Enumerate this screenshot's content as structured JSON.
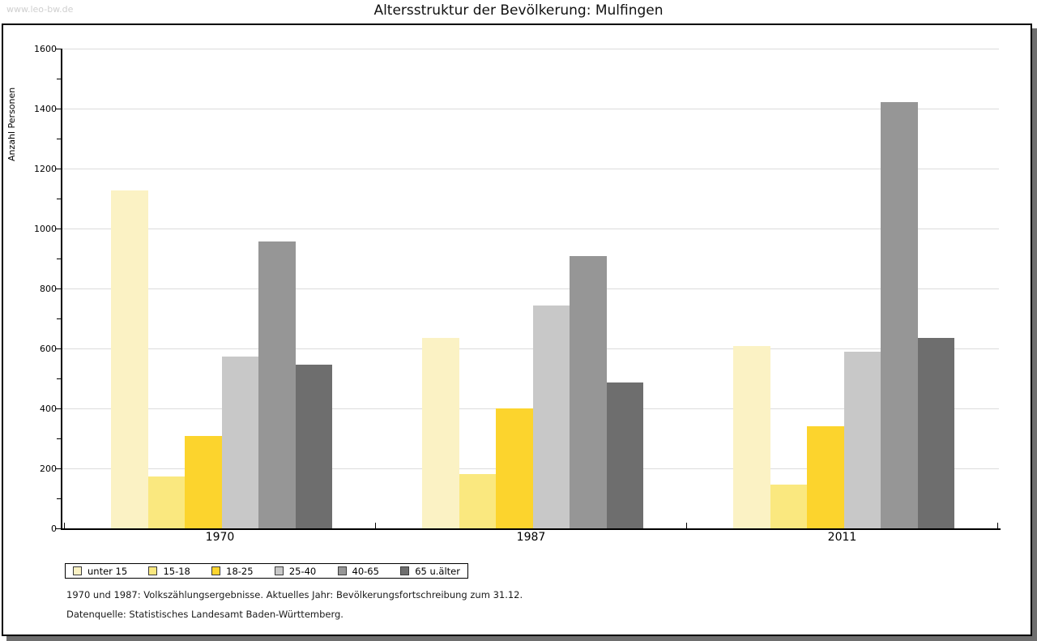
{
  "watermark": "www.leo-bw.de",
  "title": "Altersstruktur der Bevölkerung: Mulfingen",
  "y_axis_title": "Anzahl Personen",
  "footnotes": {
    "line1": "1970 und 1987: Volkszählungsergebnisse. Aktuelles Jahr: Bevölkerungsfortschreibung zum 31.12.",
    "line2": "Datenquelle: Statistisches Landesamt Baden-Württemberg."
  },
  "colors": {
    "frame_border": "#000000",
    "frame_shadow": "#6e6e6e",
    "gridline": "#dcdcdc",
    "watermark_text": "#cfcfcf"
  },
  "chart_data": {
    "type": "bar",
    "title": "Altersstruktur der Bevölkerung: Mulfingen",
    "xlabel": "",
    "ylabel": "Anzahl Personen",
    "ylim": [
      0,
      1600
    ],
    "y_tick_step": 200,
    "y_minor_tick_step": 100,
    "grid": true,
    "legend_position": "bottom",
    "categories": [
      "1970",
      "1987",
      "2011"
    ],
    "series": [
      {
        "name": "unter 15",
        "color": "#fbf2c4",
        "values": [
          1127,
          634,
          609
        ]
      },
      {
        "name": "15-18",
        "color": "#fae87f",
        "values": [
          174,
          181,
          145
        ]
      },
      {
        "name": "18-25",
        "color": "#fcd42d",
        "values": [
          308,
          400,
          341
        ]
      },
      {
        "name": "25-40",
        "color": "#c8c8c8",
        "values": [
          573,
          744,
          589
        ]
      },
      {
        "name": "40-65",
        "color": "#969696",
        "values": [
          958,
          909,
          1422
        ]
      },
      {
        "name": "65 u.älter",
        "color": "#6e6e6e",
        "values": [
          546,
          486,
          636
        ]
      }
    ]
  }
}
